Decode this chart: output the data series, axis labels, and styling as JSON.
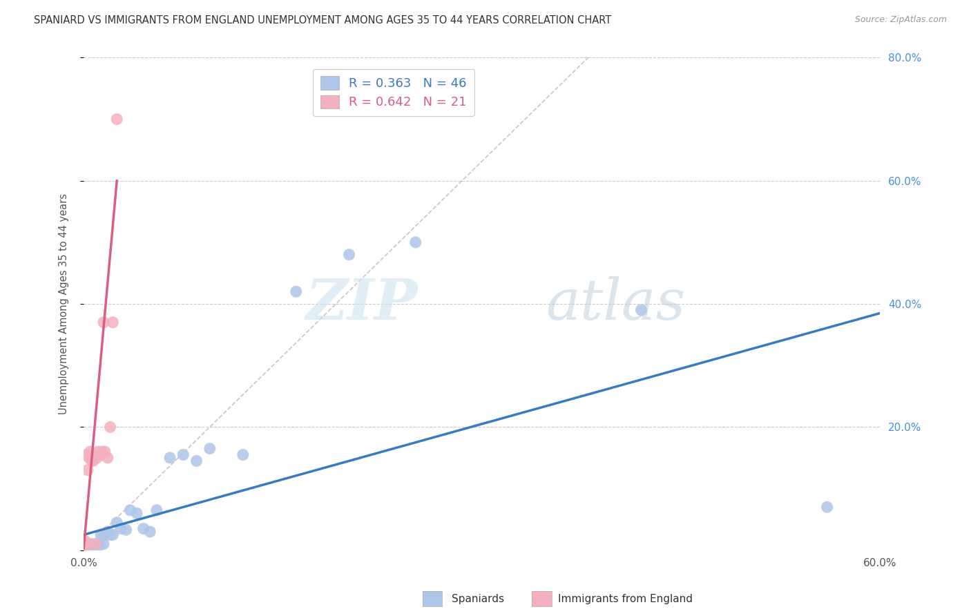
{
  "title": "SPANIARD VS IMMIGRANTS FROM ENGLAND UNEMPLOYMENT AMONG AGES 35 TO 44 YEARS CORRELATION CHART",
  "source": "Source: ZipAtlas.com",
  "ylabel": "Unemployment Among Ages 35 to 44 years",
  "xlim": [
    0,
    0.6
  ],
  "ylim": [
    0,
    0.8
  ],
  "yticks": [
    0.0,
    0.2,
    0.4,
    0.6,
    0.8
  ],
  "yticklabels_right": [
    "",
    "20.0%",
    "40.0%",
    "60.0%",
    "80.0%"
  ],
  "spaniards_x": [
    0.001,
    0.001,
    0.001,
    0.002,
    0.002,
    0.002,
    0.003,
    0.003,
    0.003,
    0.004,
    0.004,
    0.005,
    0.005,
    0.006,
    0.006,
    0.007,
    0.007,
    0.008,
    0.009,
    0.01,
    0.011,
    0.012,
    0.013,
    0.015,
    0.016,
    0.018,
    0.02,
    0.022,
    0.025,
    0.028,
    0.032,
    0.035,
    0.04,
    0.045,
    0.05,
    0.055,
    0.065,
    0.075,
    0.085,
    0.095,
    0.12,
    0.16,
    0.2,
    0.25,
    0.42,
    0.56
  ],
  "spaniards_y": [
    0.005,
    0.008,
    0.012,
    0.004,
    0.007,
    0.01,
    0.003,
    0.006,
    0.01,
    0.005,
    0.008,
    0.004,
    0.007,
    0.006,
    0.01,
    0.004,
    0.008,
    0.005,
    0.007,
    0.006,
    0.012,
    0.008,
    0.025,
    0.01,
    0.025,
    0.03,
    0.025,
    0.025,
    0.045,
    0.035,
    0.033,
    0.065,
    0.06,
    0.035,
    0.03,
    0.065,
    0.15,
    0.155,
    0.145,
    0.165,
    0.155,
    0.42,
    0.48,
    0.5,
    0.39,
    0.07
  ],
  "england_x": [
    0.001,
    0.001,
    0.002,
    0.002,
    0.003,
    0.004,
    0.005,
    0.006,
    0.007,
    0.008,
    0.009,
    0.01,
    0.011,
    0.013,
    0.014,
    0.015,
    0.016,
    0.018,
    0.02,
    0.022,
    0.025
  ],
  "england_y": [
    0.005,
    0.015,
    0.01,
    0.155,
    0.13,
    0.15,
    0.16,
    0.145,
    0.145,
    0.155,
    0.01,
    0.15,
    0.16,
    0.155,
    0.16,
    0.37,
    0.16,
    0.15,
    0.2,
    0.37,
    0.7
  ],
  "blue_line_x": [
    0.0,
    0.6
  ],
  "blue_line_y": [
    0.025,
    0.385
  ],
  "pink_line_x": [
    0.0,
    0.025
  ],
  "pink_line_y": [
    0.003,
    0.6
  ],
  "ref_line_x": [
    0.0,
    0.38
  ],
  "ref_line_y": [
    0.0,
    0.8
  ],
  "spaniard_color": "#aec6e8",
  "england_color": "#f4b0be",
  "blue_line_color": "#3a7abf",
  "pink_line_color": "#d95f7f",
  "ref_line_color": "#c8b0c0",
  "background_color": "#ffffff",
  "grid_color": "#cccccc",
  "watermark_zip_color": "#cde3f0",
  "watermark_atlas_color": "#b8ccd8"
}
